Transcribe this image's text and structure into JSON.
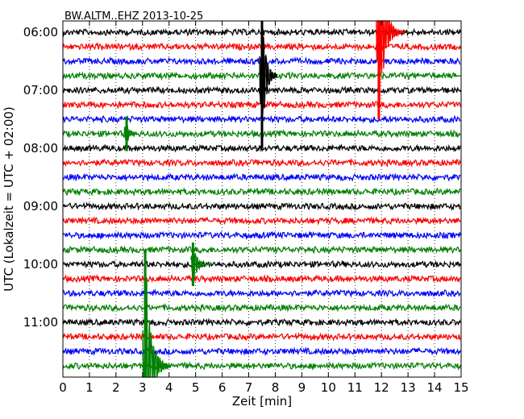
{
  "chart_data": {
    "type": "line",
    "title": "BW.ALTM..EHZ 2013-10-25",
    "xlabel": "Zeit  [min]",
    "ylabel": "UTC (Lokalzeit = UTC + 02:00)",
    "xlim": [
      0,
      15
    ],
    "x_ticks": [
      "0",
      "1",
      "2",
      "3",
      "4",
      "5",
      "6",
      "7",
      "8",
      "9",
      "10",
      "11",
      "12",
      "13",
      "14",
      "15"
    ],
    "y_ticks": [
      "06:00",
      "07:00",
      "08:00",
      "09:00",
      "10:00",
      "11:00"
    ],
    "grid": true,
    "traces_per_hour": 4,
    "trace_minutes": 15,
    "start_time": "06:00",
    "trace_count": 24,
    "trace_colors": [
      "#000000",
      "#ff0000",
      "#0000ff",
      "#008000"
    ],
    "events": [
      {
        "trace": 0,
        "minute": 11.9,
        "amplitude": 6.0,
        "color": "#ff0000",
        "duration_min": 1.0
      },
      {
        "trace": 3,
        "minute": 7.5,
        "amplitude": 5.0,
        "color": "#000000",
        "duration_min": 0.6
      },
      {
        "trace": 7,
        "minute": 2.4,
        "amplitude": 1.2,
        "color": "#008000",
        "duration_min": 0.2
      },
      {
        "trace": 16,
        "minute": 4.9,
        "amplitude": 1.5,
        "color": "#008000",
        "duration_min": 0.7
      },
      {
        "trace": 23,
        "minute": 3.1,
        "amplitude": 8.0,
        "color": "#008000",
        "duration_min": 1.0
      }
    ]
  }
}
